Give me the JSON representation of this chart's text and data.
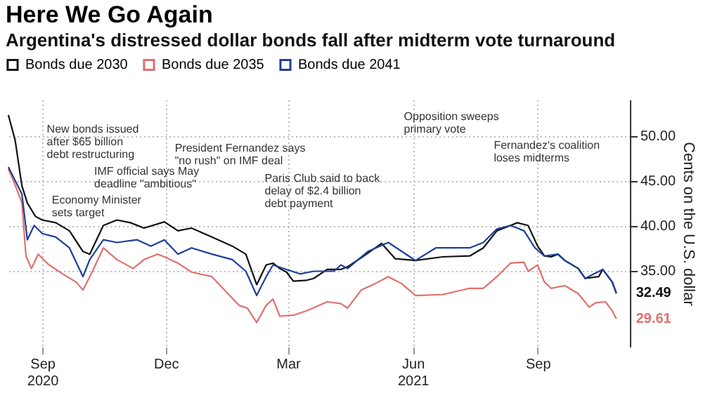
{
  "chart_data": {
    "type": "line",
    "title": "Here We Go Again",
    "subtitle": "Argentina's distressed dollar bonds fall after midterm vote turnaround",
    "ylabel": "Cents on the U.S. dollar",
    "xlim": [
      "2020-08-05",
      "2021-11-08"
    ],
    "ylim": [
      26.5,
      54
    ],
    "xticks": [
      {
        "value": "2020-09-01",
        "label": "Sep\n2020"
      },
      {
        "value": "2020-12-01",
        "label": "Dec"
      },
      {
        "value": "2021-03-01",
        "label": "Mar"
      },
      {
        "value": "2021-06-01",
        "label": "Jun\n2021"
      },
      {
        "value": "2021-09-01",
        "label": "Sep"
      }
    ],
    "yticks": [
      {
        "value": 35,
        "label": "35.00"
      },
      {
        "value": 40,
        "label": "40.00"
      },
      {
        "value": 45,
        "label": "45.00"
      },
      {
        "value": 50,
        "label": "50.00"
      }
    ],
    "grid": true,
    "legend": "top left",
    "series": [
      {
        "name": "Bonds due 2030",
        "color": "#111111",
        "x": [
          "2020-08-07",
          "2020-08-12",
          "2020-08-17",
          "2020-08-21",
          "2020-08-27",
          "2020-09-01",
          "2020-09-11",
          "2020-09-21",
          "2020-10-01",
          "2020-10-06",
          "2020-10-16",
          "2020-10-26",
          "2020-11-05",
          "2020-11-15",
          "2020-11-30",
          "2020-12-10",
          "2020-12-20",
          "2021-01-04",
          "2021-01-19",
          "2021-01-29",
          "2021-02-06",
          "2021-02-13",
          "2021-02-18",
          "2021-02-23",
          "2021-02-28",
          "2021-03-05",
          "2021-03-15",
          "2021-03-20",
          "2021-03-30",
          "2021-04-09",
          "2021-04-14",
          "2021-04-24",
          "2021-05-09",
          "2021-05-19",
          "2021-06-03",
          "2021-06-23",
          "2021-07-13",
          "2021-07-23",
          "2021-08-02",
          "2021-08-12",
          "2021-08-17",
          "2021-08-25",
          "2021-09-01",
          "2021-09-06",
          "2021-09-11",
          "2021-09-16",
          "2021-09-21",
          "2021-10-01",
          "2021-10-06",
          "2021-10-16",
          "2021-10-19",
          "2021-10-26",
          "2021-10-29"
        ],
        "values": [
          52.3,
          49.5,
          44.4,
          42.5,
          41.0,
          40.6,
          40.3,
          39.4,
          37.1,
          36.8,
          40.0,
          40.6,
          40.3,
          39.7,
          40.4,
          39.4,
          39.7,
          38.7,
          37.7,
          36.8,
          33.4,
          35.6,
          35.8,
          35.2,
          34.8,
          33.8,
          33.9,
          34.1,
          35.1,
          35.1,
          35.4,
          36.4,
          38.0,
          36.3,
          36.1,
          36.5,
          36.6,
          37.5,
          39.4,
          40.0,
          40.3,
          40.0,
          37.7,
          36.6,
          36.5,
          36.8,
          36.1,
          35.2,
          34.1,
          34.3,
          35.1,
          33.7,
          32.49
        ],
        "value_labels": [
          null,
          null,
          null,
          null,
          null,
          null,
          null,
          null,
          null,
          null,
          null,
          null,
          null,
          null,
          null,
          null,
          null,
          null,
          null,
          null,
          null,
          null,
          null,
          null,
          null,
          null,
          null,
          null,
          null,
          null,
          null,
          null,
          null,
          null,
          null,
          null,
          null,
          null,
          null,
          null,
          null,
          null,
          null,
          null,
          null,
          null,
          null,
          null,
          null,
          null,
          null,
          null,
          "32.49"
        ]
      },
      {
        "name": "Bonds due 2035",
        "color": "#e0706c",
        "x": [
          "2020-08-07",
          "2020-08-12",
          "2020-08-17",
          "2020-08-20",
          "2020-08-24",
          "2020-08-29",
          "2020-09-06",
          "2020-09-16",
          "2020-09-26",
          "2020-10-01",
          "2020-10-08",
          "2020-10-16",
          "2020-10-26",
          "2020-11-07",
          "2020-11-15",
          "2020-11-25",
          "2020-11-30",
          "2020-12-10",
          "2020-12-20",
          "2021-01-04",
          "2021-01-14",
          "2021-01-24",
          "2021-01-30",
          "2021-02-06",
          "2021-02-13",
          "2021-02-18",
          "2021-02-23",
          "2021-03-05",
          "2021-03-15",
          "2021-03-30",
          "2021-04-09",
          "2021-04-14",
          "2021-04-24",
          "2021-05-04",
          "2021-05-14",
          "2021-05-24",
          "2021-06-03",
          "2021-06-23",
          "2021-07-13",
          "2021-07-23",
          "2021-08-02",
          "2021-08-12",
          "2021-08-22",
          "2021-08-25",
          "2021-09-01",
          "2021-09-06",
          "2021-09-11",
          "2021-09-21",
          "2021-10-01",
          "2021-10-09",
          "2021-10-14",
          "2021-10-21",
          "2021-10-26",
          "2021-10-29"
        ],
        "values": [
          46.3,
          44.5,
          42.5,
          36.6,
          35.2,
          36.8,
          35.6,
          34.6,
          33.7,
          32.8,
          34.9,
          37.5,
          36.2,
          35.2,
          36.2,
          36.8,
          36.5,
          35.8,
          34.8,
          34.3,
          32.7,
          31.1,
          30.8,
          29.2,
          31.1,
          31.8,
          29.9,
          30.0,
          30.5,
          31.5,
          31.3,
          30.8,
          32.8,
          33.5,
          34.3,
          33.5,
          32.2,
          32.3,
          33.0,
          33.0,
          34.3,
          35.8,
          35.9,
          34.9,
          35.6,
          33.7,
          33.0,
          33.3,
          32.4,
          30.9,
          31.4,
          31.5,
          30.5,
          29.61
        ],
        "value_labels": [
          null,
          null,
          null,
          null,
          null,
          null,
          null,
          null,
          null,
          null,
          null,
          null,
          null,
          null,
          null,
          null,
          null,
          null,
          null,
          null,
          null,
          null,
          null,
          null,
          null,
          null,
          null,
          null,
          null,
          null,
          null,
          null,
          null,
          null,
          null,
          null,
          null,
          null,
          null,
          null,
          null,
          null,
          null,
          null,
          null,
          null,
          null,
          null,
          null,
          null,
          null,
          null,
          null,
          "29.61"
        ]
      },
      {
        "name": "Bonds due 2041",
        "color": "#1f3f99",
        "x": [
          "2020-08-07",
          "2020-08-12",
          "2020-08-17",
          "2020-08-21",
          "2020-08-26",
          "2020-09-01",
          "2020-09-11",
          "2020-09-21",
          "2020-10-01",
          "2020-10-06",
          "2020-10-16",
          "2020-10-26",
          "2020-11-10",
          "2020-11-20",
          "2020-11-30",
          "2020-12-10",
          "2020-12-20",
          "2021-01-04",
          "2021-01-19",
          "2021-01-29",
          "2021-02-06",
          "2021-02-13",
          "2021-02-18",
          "2021-02-28",
          "2021-03-10",
          "2021-03-20",
          "2021-04-04",
          "2021-04-09",
          "2021-04-14",
          "2021-04-29",
          "2021-05-14",
          "2021-05-29",
          "2021-06-03",
          "2021-06-18",
          "2021-07-13",
          "2021-07-23",
          "2021-08-02",
          "2021-08-12",
          "2021-08-17",
          "2021-08-22",
          "2021-08-30",
          "2021-09-06",
          "2021-09-16",
          "2021-09-21",
          "2021-10-01",
          "2021-10-06",
          "2021-10-19",
          "2021-10-26",
          "2021-10-29"
        ],
        "values": [
          46.5,
          45.0,
          43.5,
          38.4,
          40.0,
          39.1,
          38.7,
          37.5,
          34.3,
          36.2,
          38.4,
          38.1,
          38.4,
          37.7,
          38.4,
          36.8,
          37.5,
          36.8,
          36.2,
          34.9,
          32.2,
          34.3,
          35.6,
          35.1,
          34.6,
          34.9,
          34.9,
          35.6,
          35.2,
          37.1,
          38.1,
          36.6,
          36.1,
          37.5,
          37.5,
          38.1,
          39.6,
          40.0,
          39.7,
          39.4,
          37.5,
          36.6,
          36.8,
          36.1,
          35.2,
          34.1,
          35.1,
          33.7,
          32.4
        ]
      }
    ],
    "annotations": [
      "New bonds issued\nafter $65 billion\ndebt restructuring",
      "IMF official says May\ndeadline \"ambitious\"",
      "President Fernandez says\n\"no rush\" on IMF deal",
      "Economy Minister\nsets target",
      "Paris Club said to back\ndelay of $2.4 billion\ndebt payment",
      "Opposition sweeps\nprimary vote",
      "Fernandez's coalition\nloses midterms"
    ]
  }
}
